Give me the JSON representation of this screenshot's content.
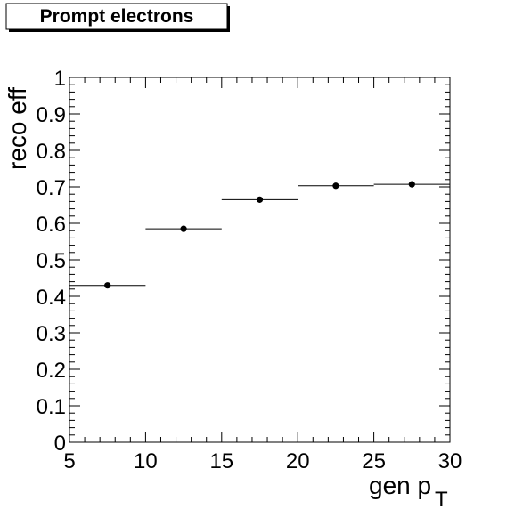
{
  "chart_data": {
    "type": "scatter",
    "title": "Prompt electrons",
    "xlabel": "gen p",
    "xlabel_subscript": "T",
    "ylabel": "reco eff",
    "xlim": [
      5,
      30
    ],
    "ylim": [
      0,
      1
    ],
    "x_ticks": [
      "5",
      "10",
      "15",
      "20",
      "25",
      "30"
    ],
    "y_ticks": [
      "0",
      "0.1",
      "0.2",
      "0.3",
      "0.4",
      "0.5",
      "0.6",
      "0.7",
      "0.8",
      "0.9",
      "1"
    ],
    "grid": false,
    "series": [
      {
        "bins": [
          [
            5,
            10
          ],
          [
            10,
            15
          ],
          [
            15,
            20
          ],
          [
            20,
            25
          ],
          [
            25,
            30
          ]
        ],
        "x": [
          7.5,
          12.5,
          17.5,
          22.5,
          27.5
        ],
        "values": [
          0.43,
          0.585,
          0.665,
          0.703,
          0.707
        ],
        "color": "#000000"
      }
    ]
  }
}
